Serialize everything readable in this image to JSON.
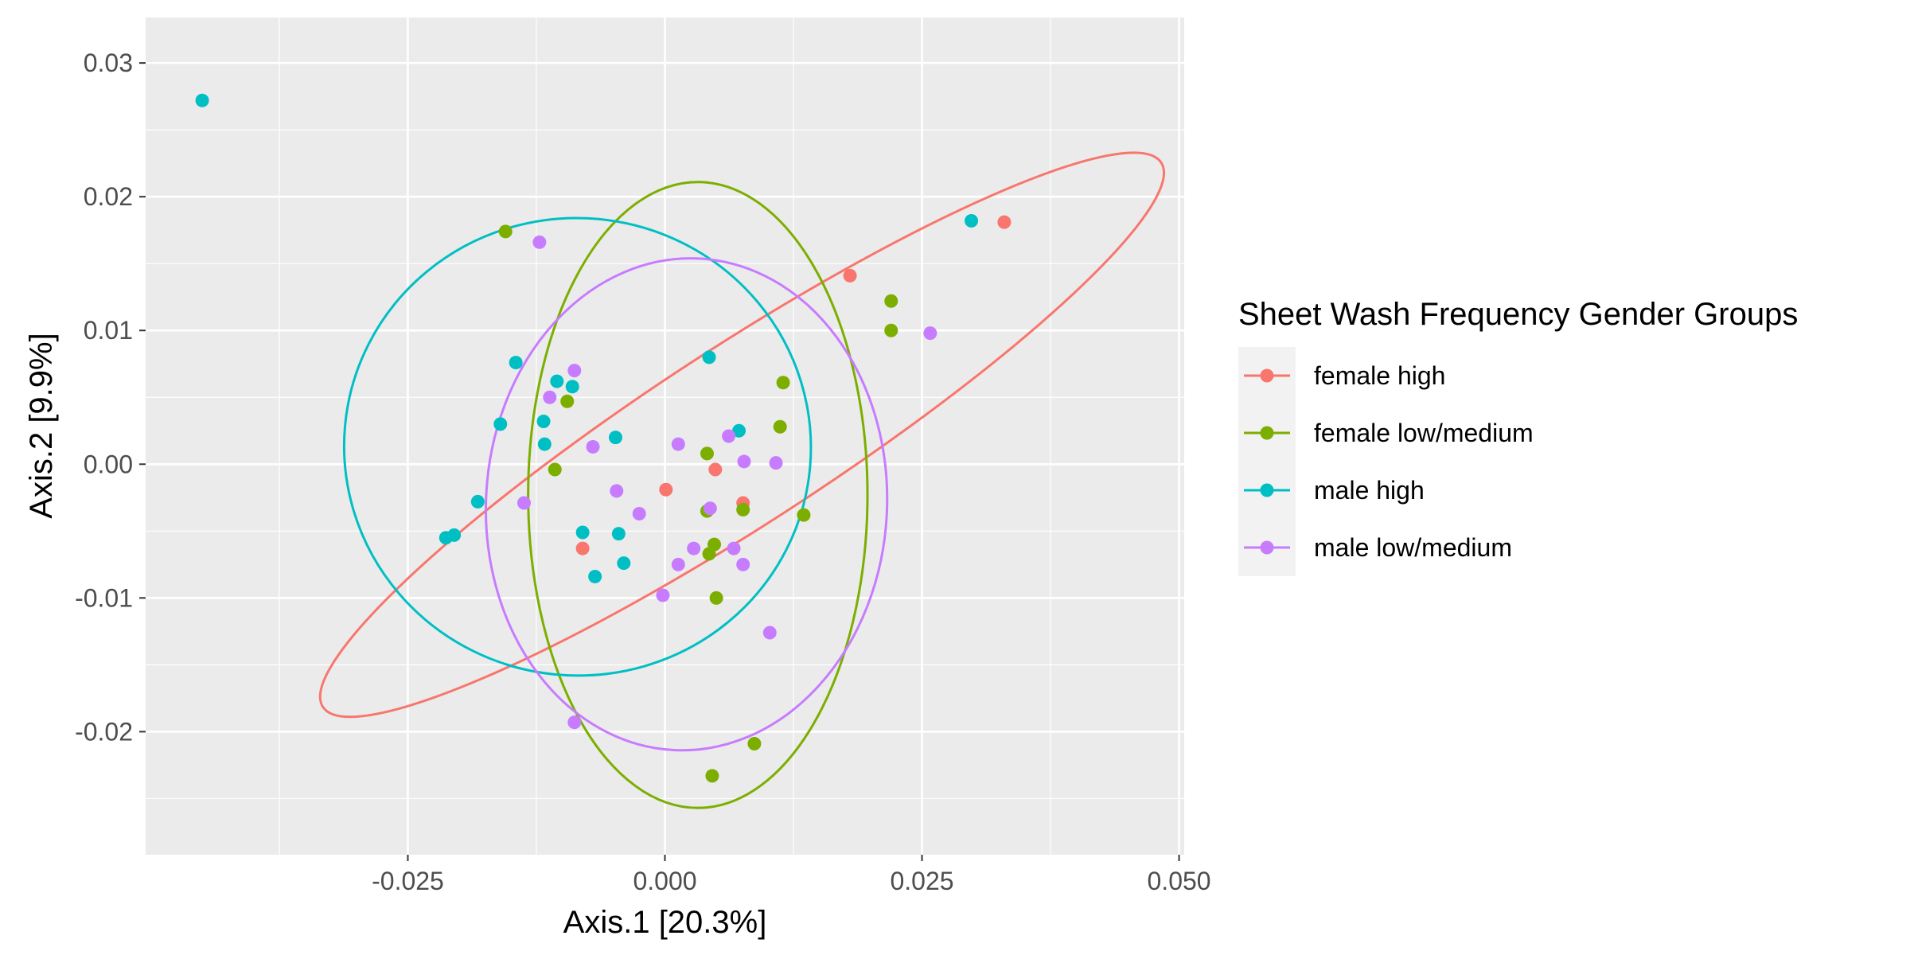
{
  "chart_data": {
    "type": "scatter",
    "title": "",
    "xlabel": "Axis.1   [20.3%]",
    "ylabel": "Axis.2   [9.9%]",
    "xlim": [
      -0.0505,
      0.0505
    ],
    "ylim": [
      -0.0292,
      0.0334
    ],
    "x_ticks": [
      -0.025,
      0.0,
      0.025,
      0.05
    ],
    "x_tick_labels": [
      "-0.025",
      "0.000",
      "0.025",
      "0.050"
    ],
    "y_ticks": [
      -0.02,
      -0.01,
      0.0,
      0.01,
      0.02,
      0.03
    ],
    "y_tick_labels": [
      "-0.02",
      "-0.01",
      "0.00",
      "0.01",
      "0.02",
      "0.03"
    ],
    "grid": true,
    "legend": {
      "title": "Sheet Wash Frequency Gender Groups",
      "position": "right"
    },
    "series": [
      {
        "name": "female high",
        "color": "#F8766D",
        "points": [
          [
            0.033,
            0.0181
          ],
          [
            0.018,
            0.0141
          ],
          [
            0.0049,
            -0.0004
          ],
          [
            0.0076,
            -0.0029
          ],
          [
            0.0001,
            -0.0019
          ],
          [
            -0.008,
            -0.0063
          ]
        ],
        "ellipse": {
          "center": [
            0.0075,
            0.0022
          ],
          "semi_axes": [
            0.0486,
            0.0066
          ],
          "angle_deg": 33
        }
      },
      {
        "name": "female low/medium",
        "color": "#7CAE00",
        "points": [
          [
            -0.0155,
            0.0174
          ],
          [
            0.022,
            0.0122
          ],
          [
            0.022,
            0.01
          ],
          [
            0.0115,
            0.0061
          ],
          [
            -0.0095,
            0.0047
          ],
          [
            0.0112,
            0.0028
          ],
          [
            0.0041,
            0.0008
          ],
          [
            -0.0107,
            -0.0004
          ],
          [
            0.0041,
            -0.0035
          ],
          [
            0.0076,
            -0.0034
          ],
          [
            0.0135,
            -0.0038
          ],
          [
            0.0048,
            -0.006
          ],
          [
            0.0043,
            -0.0067
          ],
          [
            0.005,
            -0.01
          ],
          [
            0.0087,
            -0.0209
          ],
          [
            0.0046,
            -0.0233
          ]
        ],
        "ellipse": {
          "center": [
            0.0032,
            -0.0023
          ],
          "semi_axes": [
            0.0165,
            0.0234
          ],
          "angle_deg": 0
        }
      },
      {
        "name": "male high",
        "color": "#00BFC4",
        "points": [
          [
            -0.045,
            0.0272
          ],
          [
            0.0298,
            0.0182
          ],
          [
            0.0043,
            0.008
          ],
          [
            -0.0145,
            0.0076
          ],
          [
            -0.0105,
            0.0062
          ],
          [
            -0.009,
            0.0058
          ],
          [
            -0.0118,
            0.0032
          ],
          [
            -0.016,
            0.003
          ],
          [
            0.0072,
            0.0025
          ],
          [
            -0.0048,
            0.002
          ],
          [
            -0.0117,
            0.0015
          ],
          [
            -0.0182,
            -0.0028
          ],
          [
            -0.008,
            -0.0051
          ],
          [
            -0.0045,
            -0.0052
          ],
          [
            -0.0205,
            -0.0053
          ],
          [
            -0.0213,
            -0.0055
          ],
          [
            -0.004,
            -0.0074
          ],
          [
            -0.0068,
            -0.0084
          ]
        ],
        "ellipse": {
          "center": [
            -0.0085,
            0.0013
          ],
          "semi_axes": [
            0.0227,
            0.0171
          ],
          "angle_deg": -5
        }
      },
      {
        "name": "male low/medium",
        "color": "#C77CFF",
        "points": [
          [
            -0.0122,
            0.0166
          ],
          [
            0.0258,
            0.0098
          ],
          [
            -0.0088,
            0.007
          ],
          [
            -0.0112,
            0.005
          ],
          [
            0.0062,
            0.0021
          ],
          [
            0.0013,
            0.0015
          ],
          [
            -0.007,
            0.0013
          ],
          [
            0.0077,
            0.0002
          ],
          [
            0.0108,
            0.0001
          ],
          [
            -0.0047,
            -0.002
          ],
          [
            -0.0137,
            -0.0029
          ],
          [
            0.0044,
            -0.0033
          ],
          [
            -0.0025,
            -0.0037
          ],
          [
            0.0028,
            -0.0063
          ],
          [
            0.0067,
            -0.0063
          ],
          [
            0.0013,
            -0.0075
          ],
          [
            0.0076,
            -0.0075
          ],
          [
            -0.0002,
            -0.0098
          ],
          [
            0.0102,
            -0.0126
          ],
          [
            -0.0088,
            -0.0193
          ]
        ],
        "ellipse": {
          "center": [
            0.0021,
            -0.003
          ],
          "semi_axes": [
            0.0195,
            0.0184
          ],
          "angle_deg": -3
        }
      }
    ]
  }
}
